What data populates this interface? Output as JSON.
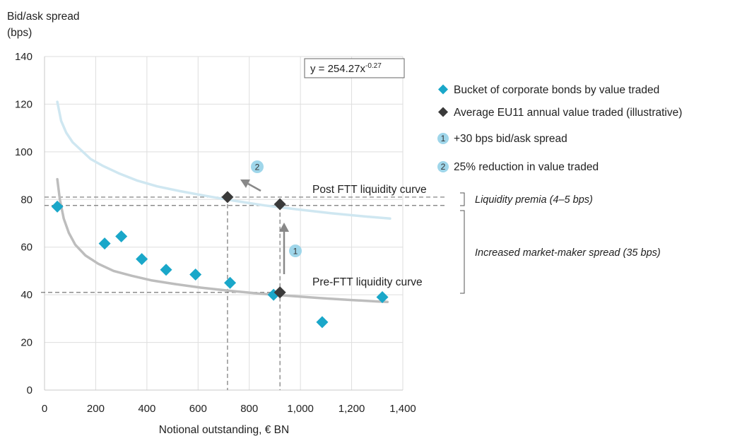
{
  "chart_data": {
    "type": "scatter",
    "ylabel_line1": "Bid/ask spread",
    "ylabel_line2": "(bps)",
    "xlabel": "Notional outstanding, € BN",
    "xlim": [
      0,
      1400
    ],
    "ylim": [
      0,
      140
    ],
    "x_ticks": [
      0,
      200,
      400,
      600,
      800,
      1000,
      1200,
      1400
    ],
    "x_tick_labels": [
      "0",
      "200",
      "400",
      "600",
      "800",
      "1,000",
      "1,200",
      "1,400"
    ],
    "y_ticks": [
      0,
      20,
      40,
      60,
      80,
      100,
      120,
      140
    ],
    "y_tick_labels": [
      "0",
      "20",
      "40",
      "60",
      "80",
      "100",
      "120",
      "140"
    ],
    "grid": true,
    "equation": {
      "prefix": "y = 254.27x",
      "exponent": "-0.27"
    },
    "series": [
      {
        "name": "Bucket of corporate bonds by value traded",
        "color": "#1aa7c9",
        "marker": "diamond",
        "points": [
          {
            "x": 50,
            "y": 77
          },
          {
            "x": 235,
            "y": 61.5
          },
          {
            "x": 300,
            "y": 64.5
          },
          {
            "x": 380,
            "y": 55
          },
          {
            "x": 475,
            "y": 50.5
          },
          {
            "x": 590,
            "y": 48.5
          },
          {
            "x": 725,
            "y": 45
          },
          {
            "x": 895,
            "y": 40
          },
          {
            "x": 1085,
            "y": 28.5
          },
          {
            "x": 1320,
            "y": 39
          }
        ]
      },
      {
        "name": "Average EU11 annual value traded (illustrative)",
        "color": "#3a3a3a",
        "marker": "diamond",
        "points": [
          {
            "x": 715,
            "y": 81
          },
          {
            "x": 920,
            "y": 41
          },
          {
            "x": 920,
            "y": 78
          }
        ]
      }
    ],
    "curves": [
      {
        "label": "Post FTT liquidity curve",
        "color": "#cfe7f1",
        "points": [
          [
            50,
            121
          ],
          [
            65,
            113
          ],
          [
            85,
            108
          ],
          [
            110,
            104
          ],
          [
            140,
            101
          ],
          [
            180,
            97
          ],
          [
            230,
            94
          ],
          [
            290,
            91
          ],
          [
            360,
            88
          ],
          [
            440,
            85.5
          ],
          [
            530,
            83.5
          ],
          [
            630,
            81.5
          ],
          [
            740,
            79.5
          ],
          [
            860,
            77.5
          ],
          [
            990,
            75.8
          ],
          [
            1120,
            74.2
          ],
          [
            1250,
            72.9
          ],
          [
            1350,
            72
          ]
        ]
      },
      {
        "label": "Pre-FTT liquidity curve",
        "color": "#bdbdbd",
        "points": [
          [
            50,
            88.5
          ],
          [
            60,
            80
          ],
          [
            75,
            72
          ],
          [
            95,
            66
          ],
          [
            120,
            61
          ],
          [
            160,
            56.5
          ],
          [
            210,
            53
          ],
          [
            270,
            50
          ],
          [
            340,
            48
          ],
          [
            420,
            46
          ],
          [
            510,
            44.5
          ],
          [
            610,
            43
          ],
          [
            720,
            41.7
          ],
          [
            840,
            40.5
          ],
          [
            960,
            39.5
          ],
          [
            1080,
            38.6
          ],
          [
            1200,
            37.8
          ],
          [
            1300,
            37.2
          ],
          [
            1340,
            37
          ]
        ]
      }
    ],
    "reference_lines": {
      "post_level": 81,
      "shifted_level": 77.5,
      "pre_level": 41,
      "vertical_x": [
        715,
        920
      ]
    },
    "steps": [
      {
        "number": "1",
        "text": "+30 bps bid/ask spread"
      },
      {
        "number": "2",
        "text": "25% reduction in value traded"
      }
    ],
    "brackets": [
      {
        "label": "Liquidity premia (4–5 bps)"
      },
      {
        "label": "Increased market-maker spread (35 bps)"
      }
    ]
  }
}
